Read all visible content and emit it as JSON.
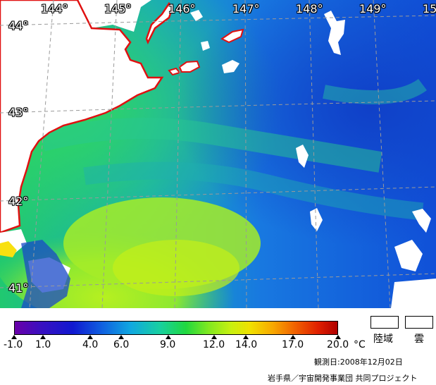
{
  "map": {
    "lon_labels": [
      "144°",
      "145°",
      "146°",
      "147°",
      "148°",
      "149°",
      "15"
    ],
    "lat_labels": [
      "44°",
      "43°",
      "42°",
      "41°"
    ]
  },
  "legend": {
    "ticks": [
      "-1.0",
      "1.0",
      "4.0",
      "6.0",
      "9.0",
      "12.0",
      "14.0",
      "17.0",
      "20.0"
    ],
    "unit": "°C",
    "land_label": "陸域",
    "cloud_label": "雲"
  },
  "observation_date": "観測日:2008年12月02日",
  "credit": "岩手県／宇宙開発事業団 共同プロジェクト",
  "colors": {
    "coastline": "#e01010",
    "land": "#ffffff",
    "grid": "#9a9a9a"
  }
}
